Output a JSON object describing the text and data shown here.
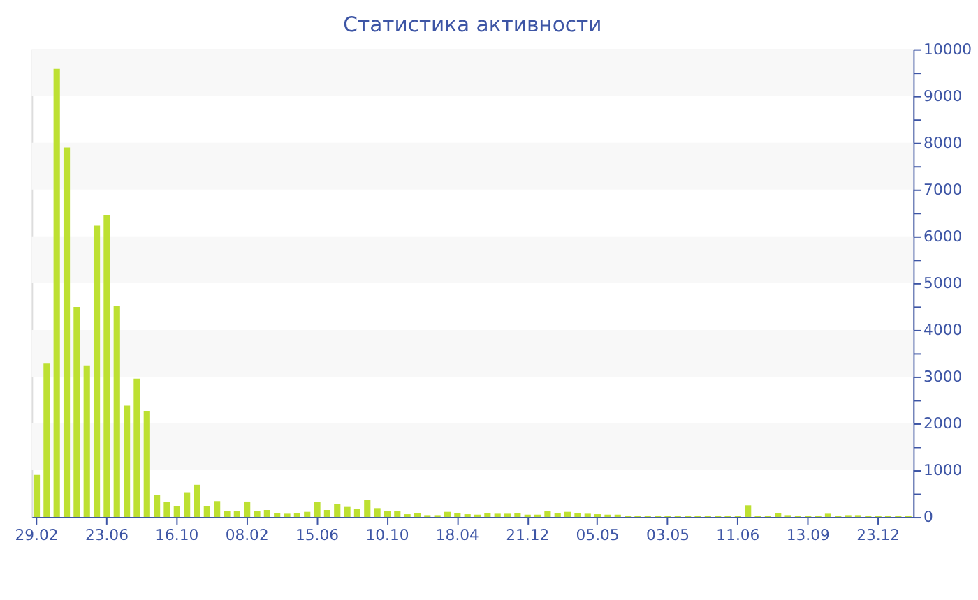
{
  "chart_data": {
    "type": "bar",
    "title": "Статистика активности",
    "categories": [
      "29.02",
      null,
      null,
      null,
      null,
      null,
      null,
      "23.06",
      null,
      null,
      null,
      null,
      null,
      null,
      "16.10",
      null,
      null,
      null,
      null,
      null,
      null,
      "08.02",
      null,
      null,
      null,
      null,
      null,
      null,
      "15.06",
      null,
      null,
      null,
      null,
      null,
      null,
      "10.10",
      null,
      null,
      null,
      null,
      null,
      null,
      "18.04",
      null,
      null,
      null,
      null,
      null,
      null,
      "21.12",
      null,
      null,
      null,
      null,
      null,
      null,
      "05.05",
      null,
      null,
      null,
      null,
      null,
      null,
      "03.05",
      null,
      null,
      null,
      null,
      null,
      null,
      "11.06",
      null,
      null,
      null,
      null,
      null,
      null,
      "13.09",
      null,
      null,
      null,
      null,
      null,
      null,
      "23.12",
      null,
      null,
      null
    ],
    "values": [
      900,
      3280,
      9580,
      7900,
      4490,
      3240,
      6230,
      6460,
      4520,
      2380,
      2960,
      2270,
      470,
      320,
      240,
      530,
      690,
      240,
      340,
      120,
      120,
      330,
      120,
      150,
      80,
      70,
      80,
      110,
      320,
      150,
      270,
      230,
      180,
      360,
      190,
      120,
      130,
      60,
      80,
      40,
      40,
      110,
      80,
      60,
      50,
      90,
      70,
      70,
      90,
      50,
      50,
      120,
      90,
      110,
      80,
      70,
      60,
      50,
      50,
      30,
      30,
      30,
      30,
      30,
      30,
      30,
      30,
      30,
      30,
      30,
      30,
      250,
      30,
      30,
      80,
      40,
      30,
      30,
      30,
      70,
      30,
      40,
      40,
      30,
      30,
      30,
      30,
      30
    ],
    "color": "#bde032",
    "ylim": [
      0,
      10000
    ],
    "yticks": [
      0,
      {
        "value": 500,
        "label": null
      },
      1000,
      {
        "value": 1500,
        "label": null
      },
      2000,
      {
        "value": 2500,
        "label": null
      },
      3000,
      {
        "value": 3500,
        "label": null
      },
      4000,
      {
        "value": 4500,
        "label": null
      },
      5000,
      {
        "value": 5500,
        "label": null
      },
      6000,
      {
        "value": 6500,
        "label": null
      },
      7000,
      {
        "value": 7500,
        "label": null
      },
      8000,
      {
        "value": 8500,
        "label": null
      },
      9000,
      {
        "value": 9500,
        "label": null
      },
      10000
    ],
    "bands": [
      {
        "axis": "y",
        "from": 1000,
        "to": 2000,
        "color": "#f8f8f8"
      },
      {
        "axis": "y",
        "from": 3000,
        "to": 4000,
        "color": "#f8f8f8"
      },
      {
        "axis": "y",
        "from": 5000,
        "to": 6000,
        "color": "#f8f8f8"
      },
      {
        "axis": "y",
        "from": 7000,
        "to": 8000,
        "color": "#f8f8f8"
      },
      {
        "axis": "y",
        "from": 9000,
        "to": 10000,
        "color": "#f8f8f8"
      }
    ]
  }
}
